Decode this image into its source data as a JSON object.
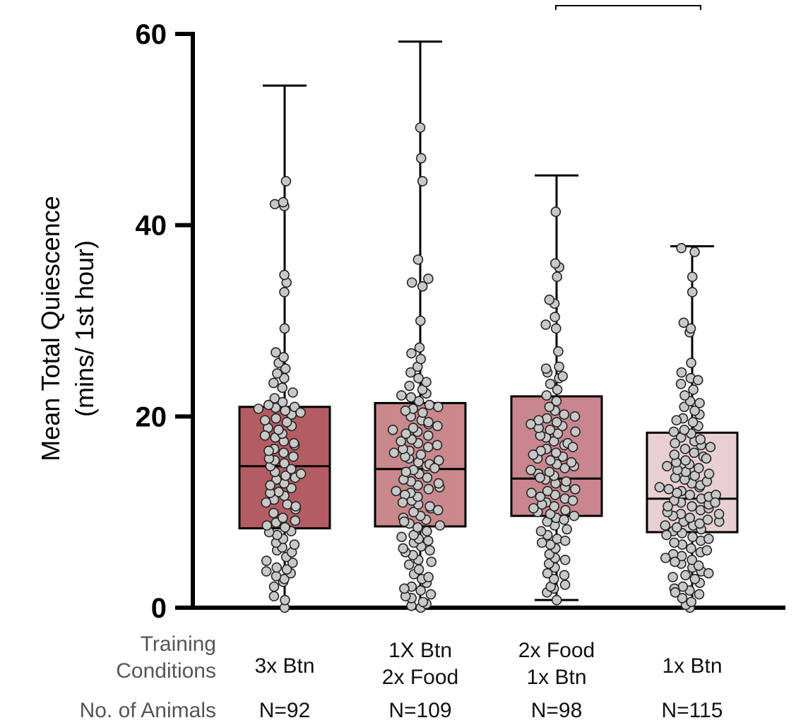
{
  "chart_data": {
    "type": "box",
    "ylabel_line1": "Mean Total Quiescence",
    "ylabel_line2": "(mins/ 1st hour)",
    "ylim": [
      0,
      60
    ],
    "yticks": [
      "0",
      "20",
      "40",
      "60"
    ],
    "row_label_conditions_line1": "Training",
    "row_label_conditions_line2": "Conditions",
    "row_label_animals": "No. of Animals",
    "groups": [
      {
        "name_lines": [
          "3x Btn"
        ],
        "n_label": "N=92",
        "color": "#b45c63",
        "min": 0,
        "q1": 8.3,
        "median": 14.8,
        "q3": 21.0,
        "max": 54.6,
        "points": [
          0,
          0.8,
          1.2,
          2.7,
          3.0,
          3.3,
          3.6,
          4.0,
          4.2,
          4.7,
          4.9,
          5.3,
          6.0,
          6.3,
          6.8,
          7.2,
          7.6,
          8.0,
          8.4,
          8.9,
          9.4,
          9.9,
          10.3,
          10.8,
          11.3,
          11.7,
          12.1,
          12.5,
          13.0,
          13.4,
          13.8,
          14.2,
          14.5,
          14.8,
          15.1,
          15.4,
          15.8,
          16.2,
          16.6,
          17.0,
          17.4,
          17.8,
          18.2,
          18.6,
          19.0,
          19.4,
          19.8,
          20.2,
          20.6,
          20.9,
          21.0,
          21.2,
          21.5,
          21.9,
          22.5,
          23.0,
          23.5,
          24.0,
          24.5,
          25.0,
          25.6,
          26.2,
          26.7,
          29.2,
          33.0,
          34.0,
          34.8,
          42.0,
          42.2,
          42.4,
          44.6,
          2.2,
          5.8,
          7.9,
          9.1,
          10.6,
          12.0,
          13.6,
          15.6,
          17.2,
          18.8,
          19.6,
          20.4,
          8.6,
          11.0,
          14.0,
          16.4,
          6.6,
          3.8,
          12.8,
          18.0,
          20.8
        ]
      },
      {
        "name_lines": [
          "1X Btn",
          "2x Food"
        ],
        "n_label": "N=109",
        "color": "#c8888c",
        "min": 0,
        "q1": 8.5,
        "median": 14.5,
        "q3": 21.4,
        "max": 59.2,
        "points": [
          0,
          0.2,
          0.4,
          0.6,
          1.0,
          1.4,
          1.8,
          2.2,
          2.6,
          3.0,
          3.5,
          4.0,
          4.5,
          5.0,
          5.5,
          6.0,
          6.4,
          6.8,
          7.2,
          7.6,
          8.0,
          8.4,
          8.8,
          9.2,
          9.6,
          10.0,
          10.4,
          10.8,
          11.2,
          11.6,
          12.0,
          12.4,
          12.8,
          13.2,
          13.6,
          14.0,
          14.4,
          14.8,
          15.2,
          15.6,
          16.0,
          16.4,
          16.8,
          17.2,
          17.6,
          18.0,
          18.4,
          18.8,
          19.2,
          19.6,
          20.0,
          20.4,
          20.8,
          21.2,
          21.6,
          22.0,
          22.4,
          22.8,
          23.2,
          23.6,
          24.0,
          24.6,
          25.2,
          26.0,
          26.6,
          27.2,
          30.0,
          33.6,
          34.0,
          34.4,
          36.4,
          44.6,
          47.0,
          50.2,
          1.2,
          2.0,
          3.2,
          4.8,
          5.8,
          7.0,
          9.4,
          10.6,
          11.8,
          12.6,
          13.4,
          14.2,
          15.0,
          15.8,
          16.6,
          17.4,
          18.2,
          19.0,
          9.0,
          11.0,
          13.0,
          15.4,
          17.0,
          19.4,
          20.6,
          12.2,
          14.6,
          16.2,
          6.2,
          8.6,
          10.2,
          18.6,
          21.0,
          22.2,
          7.4
        ]
      },
      {
        "name_lines": [
          "2x Food",
          "1x Btn"
        ],
        "n_label": "N=98",
        "color": "#c9868e",
        "min": 0.8,
        "q1": 9.6,
        "median": 13.5,
        "q3": 22.1,
        "max": 45.2,
        "points": [
          0.8,
          1.6,
          2.0,
          2.2,
          2.4,
          3.0,
          3.6,
          4.2,
          4.6,
          5.2,
          5.6,
          6.2,
          6.6,
          7.2,
          7.6,
          8.2,
          8.6,
          9.0,
          9.4,
          9.8,
          10.2,
          10.6,
          11.0,
          11.4,
          11.8,
          12.2,
          12.6,
          13.0,
          13.4,
          13.8,
          14.2,
          14.6,
          15.0,
          15.4,
          15.8,
          16.2,
          16.6,
          17.0,
          17.4,
          17.8,
          18.2,
          18.6,
          19.0,
          19.4,
          19.8,
          20.2,
          20.6,
          21.0,
          21.6,
          22.2,
          22.8,
          23.4,
          24.0,
          24.6,
          25.2,
          26.8,
          29.2,
          29.6,
          30.4,
          31.8,
          32.2,
          34.6,
          35.6,
          36.0,
          41.4,
          9.2,
          10.0,
          10.8,
          11.6,
          12.4,
          13.2,
          14.0,
          14.8,
          15.6,
          16.4,
          17.2,
          18.0,
          18.8,
          19.6,
          12.0,
          13.6,
          15.2,
          16.8,
          18.4,
          20.0,
          5.0,
          7.0,
          9.6,
          11.2,
          24.2,
          25.0,
          3.4,
          6.8,
          8.0,
          10.4,
          14.4,
          16.0,
          19.2
        ]
      },
      {
        "name_lines": [
          "1x Btn"
        ],
        "n_label": "N=115",
        "color": "#e8cfd2",
        "min": 0,
        "q1": 7.9,
        "median": 11.4,
        "q3": 18.3,
        "max": 37.8,
        "points": [
          0,
          0.3,
          0.6,
          1.0,
          1.4,
          1.8,
          2.2,
          2.6,
          3.0,
          3.4,
          3.8,
          4.2,
          4.6,
          5.0,
          5.4,
          5.8,
          6.2,
          6.6,
          7.0,
          7.4,
          7.8,
          8.2,
          8.6,
          9.0,
          9.4,
          9.8,
          10.2,
          10.6,
          11.0,
          11.4,
          11.8,
          12.2,
          12.6,
          13.0,
          13.4,
          13.8,
          14.2,
          14.6,
          15.0,
          15.4,
          15.8,
          16.2,
          16.6,
          17.0,
          17.4,
          17.8,
          18.2,
          18.6,
          19.0,
          19.4,
          19.8,
          20.2,
          20.6,
          21.0,
          21.6,
          22.2,
          22.8,
          23.4,
          24.0,
          24.6,
          25.6,
          28.8,
          29.2,
          29.8,
          33.0,
          34.6,
          37.2,
          37.6,
          2.0,
          3.2,
          4.4,
          5.6,
          6.8,
          8.0,
          8.8,
          9.6,
          10.4,
          11.2,
          12.0,
          12.8,
          13.6,
          14.4,
          15.2,
          16.0,
          16.8,
          17.6,
          18.4,
          8.4,
          9.2,
          10.0,
          10.8,
          11.6,
          12.4,
          13.2,
          14.0,
          7.2,
          8.6,
          9.0,
          10.6,
          11.8,
          12.6,
          6.0,
          7.6,
          9.8,
          11.0,
          3.6,
          5.2,
          15.6,
          17.2,
          19.6,
          21.4,
          23.8,
          1.6,
          4.8,
          14.8
        ]
      }
    ]
  }
}
